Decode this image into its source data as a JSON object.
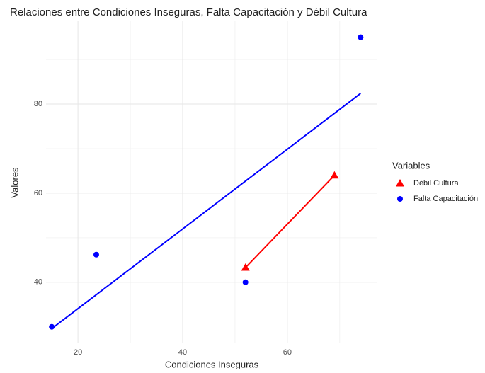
{
  "chart_data": {
    "type": "scatter",
    "title": "Relaciones entre Condiciones Inseguras, Falta Capacitación y Débil Cultura",
    "x_label": "Condiciones Inseguras",
    "y_label": "Valores",
    "legend_title": "Variables",
    "legend_position": "right",
    "xlim": [
      13.9,
      77.2
    ],
    "ylim": [
      26.3,
      98.6
    ],
    "xticks": [
      20,
      40,
      60
    ],
    "yticks": [
      40,
      60,
      80
    ],
    "x_minor_grid": [
      30,
      50,
      70
    ],
    "y_minor_grid": [
      50,
      70,
      90
    ],
    "grid": true,
    "series": [
      {
        "name": "Débil Cultura",
        "color": "#ff0000",
        "shape": "triangle",
        "x": [
          52,
          69
        ],
        "values": [
          43.3,
          64
        ],
        "trend": {
          "x": [
            52,
            69
          ],
          "values": [
            43.3,
            64
          ]
        }
      },
      {
        "name": "Falta Capacitación",
        "color": "#0000ff",
        "shape": "circle",
        "x": [
          15,
          23.5,
          52,
          74
        ],
        "values": [
          30,
          46.2,
          40,
          95
        ],
        "trend": {
          "x": [
            15,
            74
          ],
          "values": [
            29.6,
            82.4
          ]
        }
      }
    ]
  }
}
